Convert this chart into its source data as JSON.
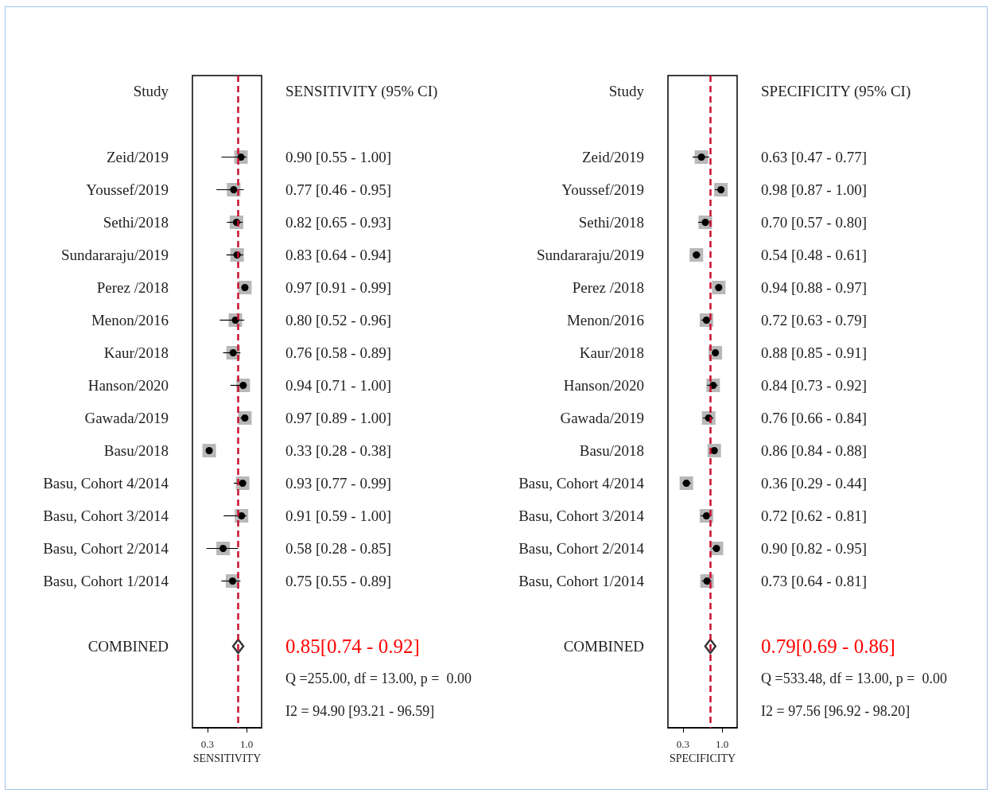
{
  "chart_data": [
    {
      "type": "scatter",
      "orientation": "horizontal",
      "ylabel": "Study",
      "y2label": "SENSITIVITY (95% CI)",
      "xlabel": "SENSITIVITY",
      "categories": [
        null,
        null,
        "Zeid/2019",
        "Youssef/2019",
        "Sethi/2018",
        "Sundararaju/2019",
        "Perez /2018",
        "Menon/2016",
        "Kaur/2018",
        "Hanson/2020",
        "Gawada/2019",
        "Basu/2018",
        "Basu, Cohort 4/2014",
        "Basu, Cohort 3/2014",
        "Basu, Cohort 2/2014",
        "Basu, Cohort 1/2014",
        null,
        "COMBINED",
        null,
        null
      ],
      "xlim": [
        0.03,
        1.27
      ],
      "xticks": [
        0.3,
        {
          "value": 1,
          "label": "1.0"
        }
      ],
      "grid": false,
      "series": [
        {
          "marker": "square",
          "color": "#a6a6a6",
          "values": [
            null,
            null,
            0.9,
            0.77,
            0.82,
            0.83,
            0.97,
            0.8,
            0.76,
            0.94,
            0.97,
            0.33,
            0.93,
            0.91,
            0.58,
            0.75,
            null,
            null,
            null,
            null
          ],
          "errors": [
            null,
            null,
            [
              0.55,
              1.0
            ],
            [
              0.46,
              0.95
            ],
            [
              0.65,
              0.93
            ],
            [
              0.64,
              0.94
            ],
            [
              0.91,
              0.99
            ],
            [
              0.52,
              0.96
            ],
            [
              0.58,
              0.89
            ],
            [
              0.71,
              1.0
            ],
            [
              0.89,
              1.0
            ],
            [
              0.28,
              0.38
            ],
            [
              0.77,
              0.99
            ],
            [
              0.59,
              1.0
            ],
            [
              0.28,
              0.85
            ],
            [
              0.55,
              0.89
            ],
            null,
            null,
            null,
            null
          ],
          "value_labels": [
            null,
            null,
            "0.90 [0.55 - 1.00]",
            "0.77 [0.46 - 0.95]",
            "0.82 [0.65 - 0.93]",
            "0.83 [0.64 - 0.94]",
            "0.97 [0.91 - 0.99]",
            "0.80 [0.52 - 0.96]",
            "0.76 [0.58 - 0.89]",
            "0.94 [0.71 - 1.00]",
            "0.97 [0.89 - 1.00]",
            "0.33 [0.28 - 0.38]",
            "0.93 [0.77 - 0.99]",
            "0.91 [0.59 - 1.00]",
            "0.58 [0.28 - 0.85]",
            "0.75 [0.55 - 0.89]",
            null,
            null,
            null,
            null
          ]
        },
        {
          "marker": "diamond",
          "color": "#000000",
          "values": [
            null,
            null,
            null,
            null,
            null,
            null,
            null,
            null,
            null,
            null,
            null,
            null,
            null,
            null,
            null,
            null,
            null,
            0.85,
            null,
            null
          ],
          "value_labels": [
            null,
            null,
            null,
            null,
            null,
            null,
            null,
            null,
            null,
            null,
            null,
            null,
            null,
            null,
            null,
            null,
            null,
            "0.85[0.74 - 0.92]",
            null,
            null
          ]
        }
      ],
      "ref_lines": [
        {
          "axis": "x",
          "value": 0.85,
          "color": "#c8102e",
          "line_style": "dashed"
        }
      ],
      "annotations": [
        "Q =255.00, df = 13.00, p =  0.00",
        "I2 = 94.90 [93.21 - 96.59]"
      ]
    },
    {
      "type": "scatter",
      "orientation": "horizontal",
      "ylabel": "Study",
      "y2label": "SPECIFICITY (95% CI)",
      "xlabel": "SPECIFICITY",
      "categories": [
        null,
        null,
        "Zeid/2019",
        "Youssef/2019",
        "Sethi/2018",
        "Sundararaju/2019",
        "Perez /2018",
        "Menon/2016",
        "Kaur/2018",
        "Hanson/2020",
        "Gawada/2019",
        "Basu/2018",
        "Basu, Cohort 4/2014",
        "Basu, Cohort 3/2014",
        "Basu, Cohort 2/2014",
        "Basu, Cohort 1/2014",
        null,
        "COMBINED",
        null,
        null
      ],
      "xlim": [
        0.03,
        1.27
      ],
      "xticks": [
        0.3,
        {
          "value": 1,
          "label": "1.0"
        }
      ],
      "grid": false,
      "series": [
        {
          "marker": "square",
          "color": "#a6a6a6",
          "values": [
            null,
            null,
            0.63,
            0.98,
            0.7,
            0.54,
            0.94,
            0.72,
            0.88,
            0.84,
            0.76,
            0.86,
            0.36,
            0.72,
            0.9,
            0.73,
            null,
            null,
            null,
            null
          ],
          "errors": [
            null,
            null,
            [
              0.47,
              0.77
            ],
            [
              0.87,
              1.0
            ],
            [
              0.57,
              0.8
            ],
            [
              0.48,
              0.61
            ],
            [
              0.88,
              0.97
            ],
            [
              0.63,
              0.79
            ],
            [
              0.85,
              0.91
            ],
            [
              0.73,
              0.92
            ],
            [
              0.66,
              0.84
            ],
            [
              0.84,
              0.88
            ],
            [
              0.29,
              0.44
            ],
            [
              0.62,
              0.81
            ],
            [
              0.82,
              0.95
            ],
            [
              0.64,
              0.81
            ],
            null,
            null,
            null,
            null
          ],
          "value_labels": [
            null,
            null,
            "0.63 [0.47 - 0.77]",
            "0.98 [0.87 - 1.00]",
            "0.70 [0.57 - 0.80]",
            "0.54 [0.48 - 0.61]",
            "0.94 [0.88 - 0.97]",
            "0.72 [0.63 - 0.79]",
            "0.88 [0.85 - 0.91]",
            "0.84 [0.73 - 0.92]",
            "0.76 [0.66 - 0.84]",
            "0.86 [0.84 - 0.88]",
            "0.36 [0.29 - 0.44]",
            "0.72 [0.62 - 0.81]",
            "0.90 [0.82 - 0.95]",
            "0.73 [0.64 - 0.81]",
            null,
            null,
            null,
            null
          ]
        },
        {
          "marker": "diamond",
          "color": "#000000",
          "values": [
            null,
            null,
            null,
            null,
            null,
            null,
            null,
            null,
            null,
            null,
            null,
            null,
            null,
            null,
            null,
            null,
            null,
            0.79,
            null,
            null
          ],
          "value_labels": [
            null,
            null,
            null,
            null,
            null,
            null,
            null,
            null,
            null,
            null,
            null,
            null,
            null,
            null,
            null,
            null,
            null,
            "0.79[0.69 - 0.86]",
            null,
            null
          ]
        }
      ],
      "ref_lines": [
        {
          "axis": "x",
          "value": 0.79,
          "color": "#c8102e",
          "line_style": "dashed"
        }
      ],
      "annotations": [
        "Q =533.48, df = 13.00, p =  0.00",
        "I2 = 97.56 [96.92 - 98.20]"
      ]
    }
  ]
}
